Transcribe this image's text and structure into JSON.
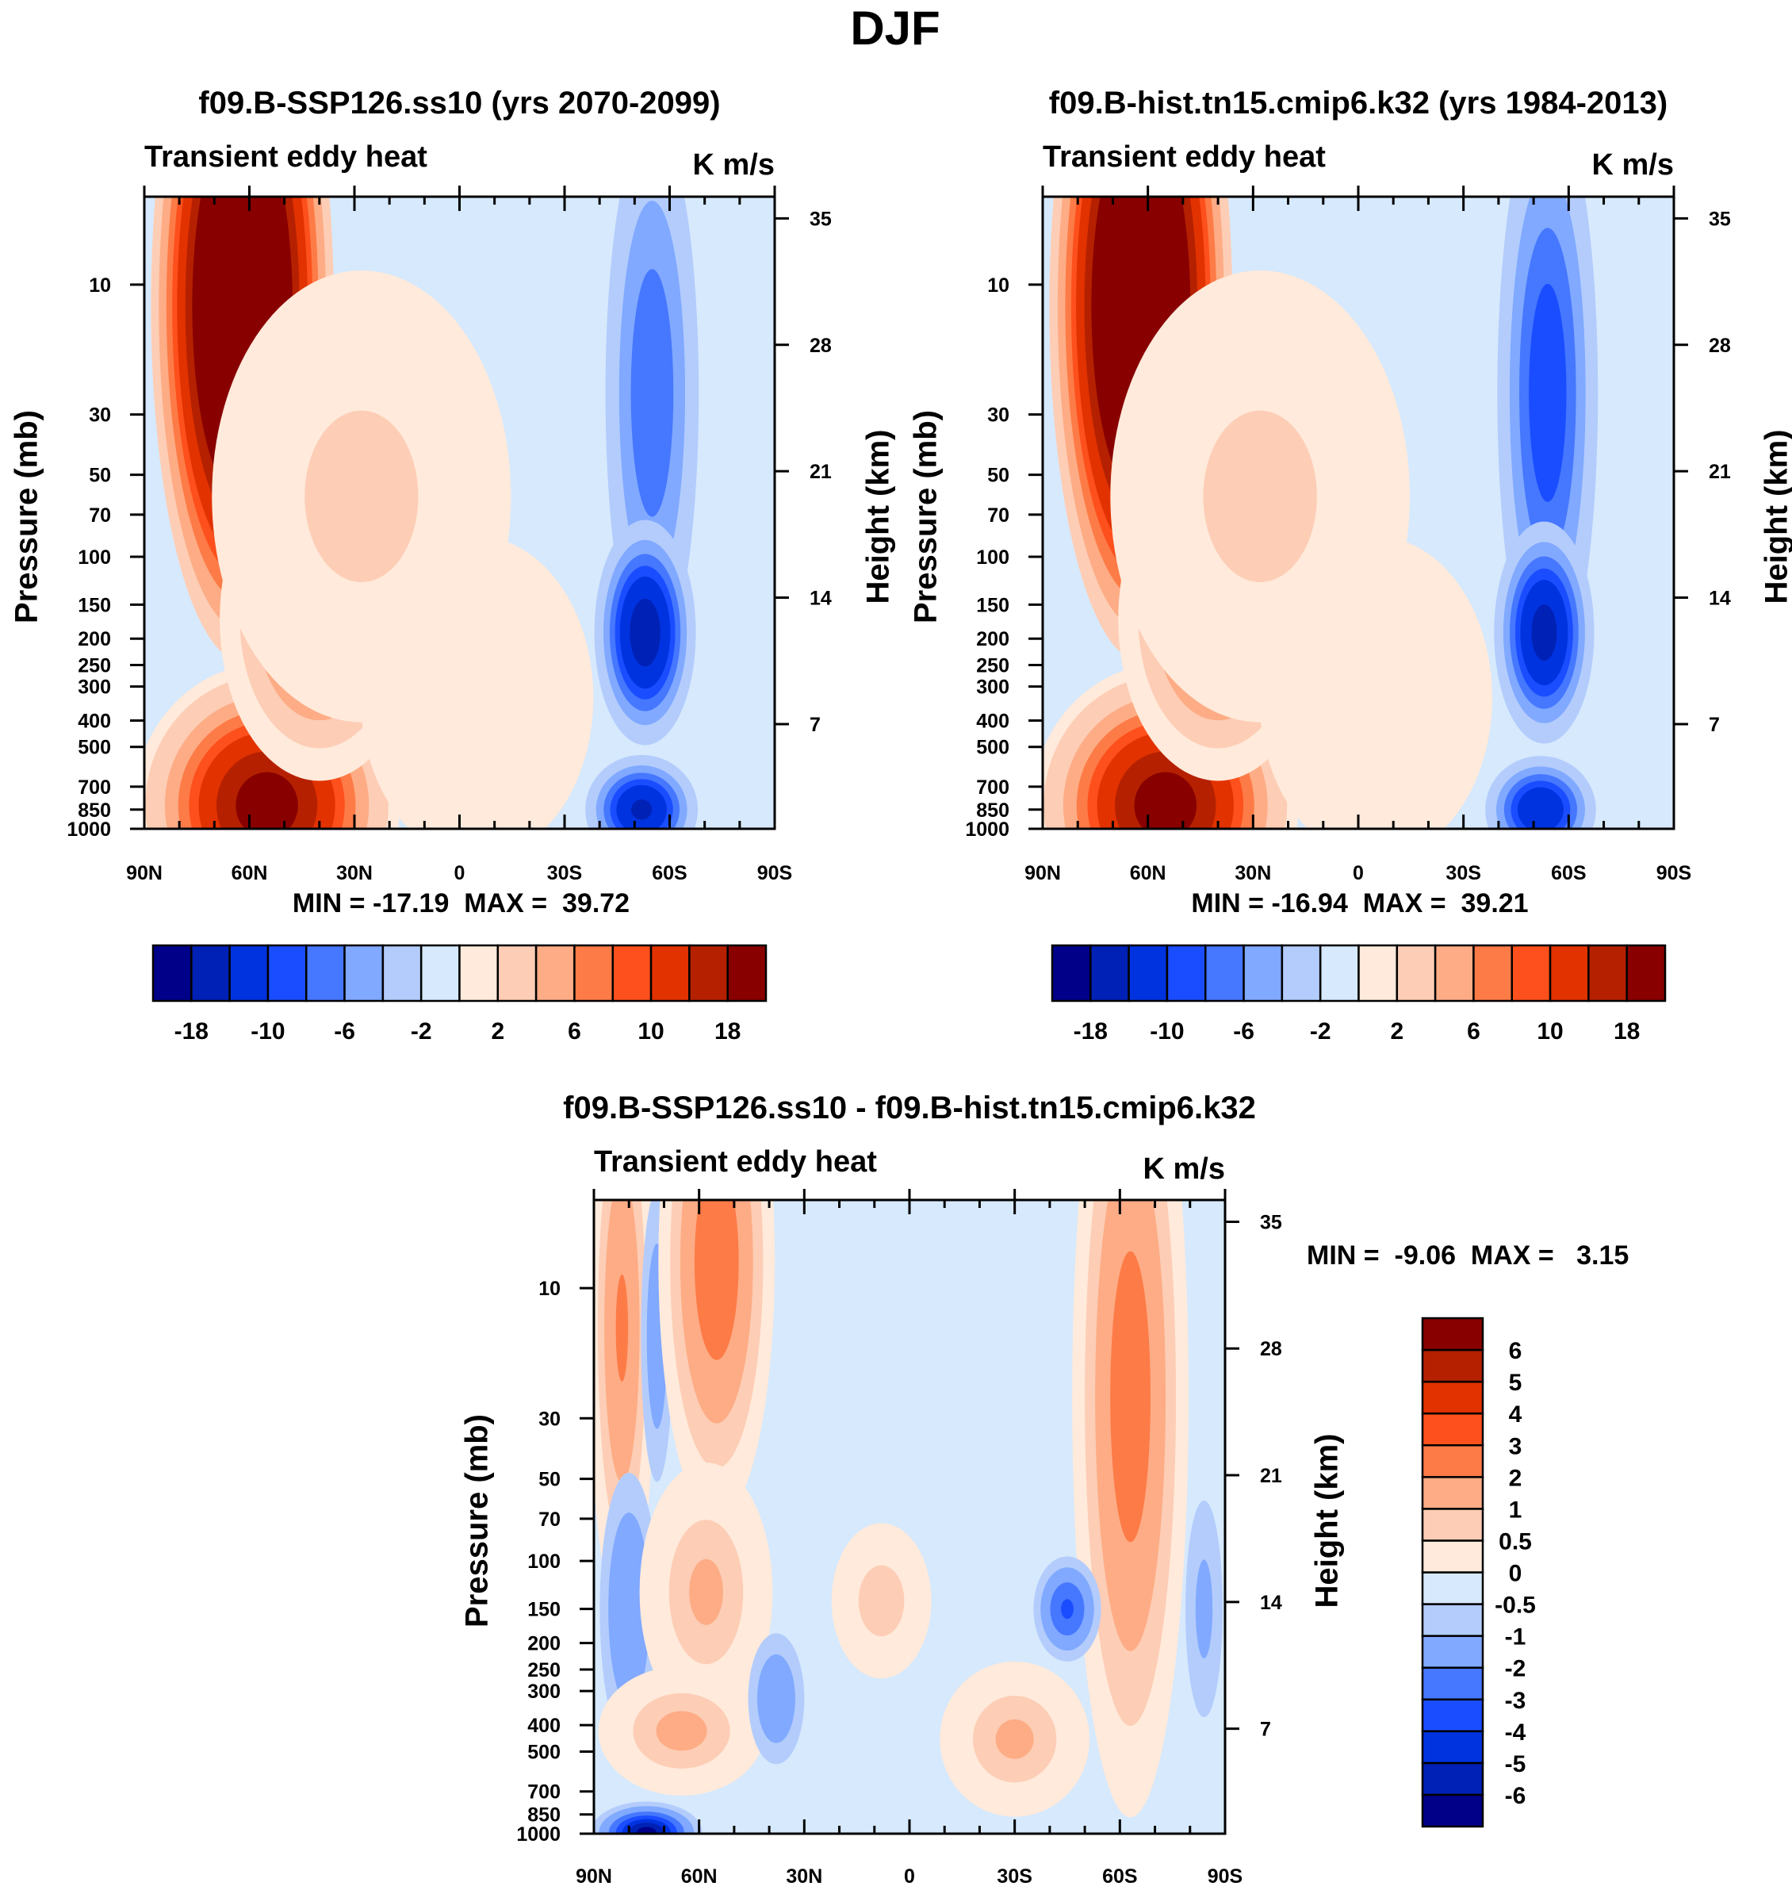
{
  "title": "DJF",
  "chart_data": [
    {
      "type": "heatmap",
      "subtype": "filled-contour",
      "title": "f09.B-SSP126.ss10 (yrs 2070-2099)",
      "left_string": "Transient eddy heat",
      "right_string": "K m/s",
      "ylabel": "Pressure (mb)",
      "ylabel_right": "Height (km)",
      "x_ticks": [
        "90N",
        "60N",
        "30N",
        "0",
        "30S",
        "60S",
        "90S"
      ],
      "y_ticks": [
        "10",
        "30",
        "50",
        "70",
        "100",
        "150",
        "200",
        "250",
        "300",
        "400",
        "500",
        "700",
        "850",
        "1000"
      ],
      "y_right_ticks": [
        "7",
        "14",
        "21",
        "28",
        "35"
      ],
      "stats": "MIN = -17.19  MAX =  39.72",
      "min": -17.19,
      "max": 39.72,
      "xlim": [
        90,
        -90
      ],
      "ylim_mb": [
        1000,
        4.75
      ],
      "background_value": -0.5,
      "features": [
        {
          "lat": 62,
          "p": 12,
          "sig_lat": 11,
          "sig_logp": 0.55,
          "value": 42
        },
        {
          "lat": 55,
          "p": 820,
          "sig_lat": 16,
          "sig_logp": 0.22,
          "value": 21
        },
        {
          "lat": 40,
          "p": 170,
          "sig_lat": 12,
          "sig_logp": 0.25,
          "value": 12
        },
        {
          "lat": 28,
          "p": 60,
          "sig_lat": 18,
          "sig_logp": 0.35,
          "value": 3
        },
        {
          "lat": -5,
          "p": 330,
          "sig_lat": 14,
          "sig_logp": 0.25,
          "value": 1.5
        },
        {
          "lat": -55,
          "p": 25,
          "sig_lat": 8,
          "sig_logp": 0.6,
          "value": -8
        },
        {
          "lat": -53,
          "p": 190,
          "sig_lat": 7,
          "sig_logp": 0.2,
          "value": -17
        },
        {
          "lat": -52,
          "p": 850,
          "sig_lat": 8,
          "sig_logp": 0.1,
          "value": -15
        }
      ]
    },
    {
      "type": "heatmap",
      "subtype": "filled-contour",
      "title": "f09.B-hist.tn15.cmip6.k32 (yrs 1984-2013)",
      "left_string": "Transient eddy heat",
      "right_string": "K m/s",
      "ylabel": "Pressure (mb)",
      "ylabel_right": "Height (km)",
      "x_ticks": [
        "90N",
        "60N",
        "30N",
        "0",
        "30S",
        "60S",
        "90S"
      ],
      "y_ticks": [
        "10",
        "30",
        "50",
        "70",
        "100",
        "150",
        "200",
        "250",
        "300",
        "400",
        "500",
        "700",
        "850",
        "1000"
      ],
      "y_right_ticks": [
        "7",
        "14",
        "21",
        "28",
        "35"
      ],
      "stats": "MIN = -16.94  MAX =  39.21",
      "min": -16.94,
      "max": 39.21,
      "xlim": [
        90,
        -90
      ],
      "ylim_mb": [
        1000,
        4.75
      ],
      "background_value": -0.5,
      "features": [
        {
          "lat": 62,
          "p": 12,
          "sig_lat": 11,
          "sig_logp": 0.55,
          "value": 41
        },
        {
          "lat": 55,
          "p": 820,
          "sig_lat": 16,
          "sig_logp": 0.22,
          "value": 21
        },
        {
          "lat": 40,
          "p": 170,
          "sig_lat": 12,
          "sig_logp": 0.25,
          "value": 12
        },
        {
          "lat": 28,
          "p": 60,
          "sig_lat": 18,
          "sig_logp": 0.35,
          "value": 3
        },
        {
          "lat": -5,
          "p": 330,
          "sig_lat": 14,
          "sig_logp": 0.25,
          "value": 1.5
        },
        {
          "lat": -54,
          "p": 25,
          "sig_lat": 8,
          "sig_logp": 0.6,
          "value": -10
        },
        {
          "lat": -53,
          "p": 190,
          "sig_lat": 7,
          "sig_logp": 0.2,
          "value": -16
        },
        {
          "lat": -52,
          "p": 850,
          "sig_lat": 8,
          "sig_logp": 0.1,
          "value": -14
        }
      ]
    },
    {
      "type": "heatmap",
      "subtype": "filled-contour",
      "title": "f09.B-SSP126.ss10 - f09.B-hist.tn15.cmip6.k32",
      "left_string": "Transient eddy heat",
      "right_string": "K m/s",
      "ylabel": "Pressure (mb)",
      "ylabel_right": "Height (km)",
      "x_ticks": [
        "90N",
        "60N",
        "30N",
        "0",
        "30S",
        "60S",
        "90S"
      ],
      "y_ticks": [
        "10",
        "30",
        "50",
        "70",
        "100",
        "150",
        "200",
        "250",
        "300",
        "400",
        "500",
        "700",
        "850",
        "1000"
      ],
      "y_right_ticks": [
        "7",
        "14",
        "21",
        "28",
        "35"
      ],
      "stats": "MIN =  -9.06  MAX =   3.15",
      "min": -9.06,
      "max": 3.15,
      "xlim": [
        90,
        -90
      ],
      "ylim_mb": [
        1000,
        4.75
      ],
      "background_value": -0.3,
      "features": [
        {
          "lat": 82,
          "p": 14,
          "sig_lat": 4,
          "sig_logp": 0.45,
          "value": 2.2
        },
        {
          "lat": 72,
          "p": 15,
          "sig_lat": 3,
          "sig_logp": 0.35,
          "value": -1.6
        },
        {
          "lat": 55,
          "p": 8,
          "sig_lat": 7,
          "sig_logp": 0.4,
          "value": 3
        },
        {
          "lat": -63,
          "p": 25,
          "sig_lat": 7,
          "sig_logp": 0.65,
          "value": 2.8
        },
        {
          "lat": -45,
          "p": 150,
          "sig_lat": 5,
          "sig_logp": 0.1,
          "value": -3.2
        },
        {
          "lat": 80,
          "p": 150,
          "sig_lat": 5,
          "sig_logp": 0.3,
          "value": -2
        },
        {
          "lat": 58,
          "p": 130,
          "sig_lat": 8,
          "sig_logp": 0.2,
          "value": 1.2
        },
        {
          "lat": 75,
          "p": 990,
          "sig_lat": 7,
          "sig_logp": 0.05,
          "value": -6.5
        },
        {
          "lat": 65,
          "p": 420,
          "sig_lat": 10,
          "sig_logp": 0.1,
          "value": 1.3
        },
        {
          "lat": -30,
          "p": 450,
          "sig_lat": 9,
          "sig_logp": 0.12,
          "value": 1.2
        },
        {
          "lat": 8,
          "p": 140,
          "sig_lat": 6,
          "sig_logp": 0.12,
          "value": 0.9
        },
        {
          "lat": -84,
          "p": 150,
          "sig_lat": 4,
          "sig_logp": 0.3,
          "value": -1.2
        },
        {
          "lat": 38,
          "p": 320,
          "sig_lat": 5,
          "sig_logp": 0.15,
          "value": -1.8
        }
      ]
    }
  ],
  "colorbars": [
    {
      "levels": [
        -18,
        -14,
        -10,
        -8,
        -6,
        -4,
        -2,
        0,
        2,
        4,
        6,
        8,
        10,
        14,
        18
      ],
      "labels": [
        "-18",
        "-10",
        "-6",
        "-2",
        "2",
        "6",
        "10",
        "18"
      ],
      "colors": [
        "#000088",
        "#0021b5",
        "#0033e0",
        "#1a4dff",
        "#4577ff",
        "#80a9ff",
        "#b3ccfc",
        "#d6e9fd",
        "#ffeadb",
        "#fdcdb5",
        "#fdac85",
        "#fd7b47",
        "#fd501c",
        "#e23200",
        "#b52100",
        "#880000"
      ]
    },
    {
      "levels": [
        -18,
        -14,
        -10,
        -8,
        -6,
        -4,
        -2,
        0,
        2,
        4,
        6,
        8,
        10,
        14,
        18
      ],
      "labels": [
        "-18",
        "-10",
        "-6",
        "-2",
        "2",
        "6",
        "10",
        "18"
      ],
      "colors": [
        "#000088",
        "#0021b5",
        "#0033e0",
        "#1a4dff",
        "#4577ff",
        "#80a9ff",
        "#b3ccfc",
        "#d6e9fd",
        "#ffeadb",
        "#fdcdb5",
        "#fdac85",
        "#fd7b47",
        "#fd501c",
        "#e23200",
        "#b52100",
        "#880000"
      ]
    },
    {
      "levels": [
        -6,
        -5,
        -4,
        -3,
        -2,
        -1,
        -0.5,
        0,
        0.5,
        1,
        2,
        3,
        4,
        5,
        6
      ],
      "labels": [
        "-6",
        "-5",
        "-4",
        "-3",
        "-2",
        "-1",
        "-0.5",
        "0",
        "0.5",
        "1",
        "2",
        "3",
        "4",
        "5",
        "6"
      ],
      "colors": [
        "#000088",
        "#0021b5",
        "#0033e0",
        "#1a4dff",
        "#4577ff",
        "#80a9ff",
        "#b3ccfc",
        "#d6e9fd",
        "#ffeadb",
        "#fdcdb5",
        "#fdac85",
        "#fd7b47",
        "#fd501c",
        "#e23200",
        "#b52100",
        "#880000"
      ]
    }
  ]
}
